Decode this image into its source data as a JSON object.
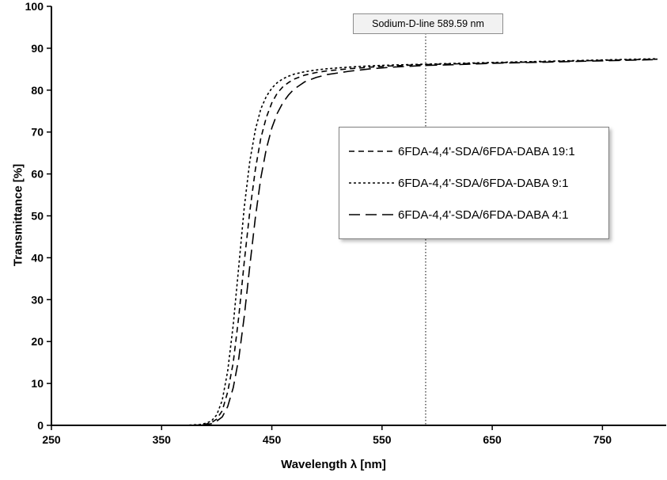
{
  "chart_data": {
    "type": "line",
    "title": "",
    "xlabel": "Wavelength λ [nm]",
    "ylabel": "Transmittance [%]",
    "xlim": [
      250,
      805
    ],
    "ylim": [
      0,
      100
    ],
    "x_ticks": [
      250,
      350,
      450,
      550,
      650,
      750
    ],
    "y_ticks": [
      0,
      10,
      20,
      30,
      40,
      50,
      60,
      70,
      80,
      90,
      100
    ],
    "grid": false,
    "legend_position": "center-right",
    "line_color": "#000000",
    "annotation": {
      "label": "Sodium-D-line 589.59 nm",
      "x": 589.59,
      "style": "vertical-dotted-line"
    },
    "x": [
      250,
      300,
      350,
      370,
      385,
      390,
      395,
      400,
      405,
      410,
      415,
      420,
      425,
      430,
      435,
      440,
      445,
      450,
      455,
      460,
      465,
      470,
      480,
      490,
      500,
      520,
      540,
      560,
      589.59,
      620,
      650,
      700,
      750,
      800
    ],
    "series": [
      {
        "name": "6FDA-4,4'-SDA/6FDA-DABA 19:1",
        "dash": "medium",
        "color": "#000000",
        "values": [
          0,
          0,
          0,
          0,
          0.1,
          0.3,
          0.6,
          1.5,
          3.5,
          8,
          15,
          26,
          39,
          51,
          61,
          68.5,
          73.5,
          77,
          79.3,
          80.8,
          81.8,
          82.6,
          83.6,
          84.2,
          84.6,
          85.1,
          85.5,
          85.8,
          86.1,
          86.3,
          86.5,
          86.8,
          87.1,
          87.4
        ]
      },
      {
        "name": "6FDA-4,4'-SDA/6FDA-DABA 9:1",
        "dash": "short",
        "color": "#000000",
        "values": [
          0,
          0,
          0,
          0,
          0.2,
          0.5,
          1,
          2.5,
          6,
          13,
          24,
          38,
          52,
          63,
          70.5,
          75.5,
          78.5,
          80.5,
          81.8,
          82.7,
          83.3,
          83.8,
          84.4,
          84.8,
          85.1,
          85.5,
          85.8,
          86.0,
          86.2,
          86.4,
          86.6,
          86.9,
          87.2,
          87.5
        ]
      },
      {
        "name": "6FDA-4,4'-SDA/6FDA-DABA 4:1",
        "dash": "long",
        "color": "#000000",
        "values": [
          0,
          0,
          0,
          0,
          0,
          0.2,
          0.4,
          1,
          2,
          4.5,
          9,
          16,
          26,
          38,
          49.5,
          59,
          66,
          71,
          74.5,
          77,
          78.8,
          80.2,
          82,
          83,
          83.7,
          84.5,
          85.1,
          85.5,
          85.9,
          86.1,
          86.4,
          86.7,
          87.0,
          87.3
        ]
      }
    ]
  }
}
